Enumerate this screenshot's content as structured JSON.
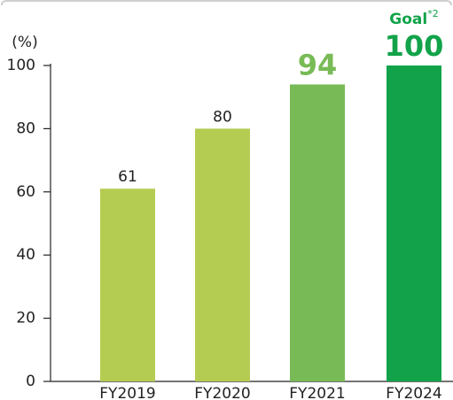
{
  "chart_data": {
    "type": "bar",
    "y_label": "(%)",
    "categories": [
      "FY2019",
      "FY2020",
      "FY2021",
      "FY2024"
    ],
    "values": [
      61,
      80,
      94,
      100
    ],
    "colors": [
      "#b5cc52",
      "#b5cc52",
      "#78bb56",
      "#12a34a"
    ],
    "label_colors": [
      "#222222",
      "#222222",
      "#78bb56",
      "#12a34a"
    ],
    "annotation": {
      "text": "Goal",
      "superscript": "*2"
    },
    "ylim": [
      0,
      100
    ],
    "yticks": [
      0,
      20,
      40,
      60,
      80,
      100
    ],
    "grid": false
  }
}
